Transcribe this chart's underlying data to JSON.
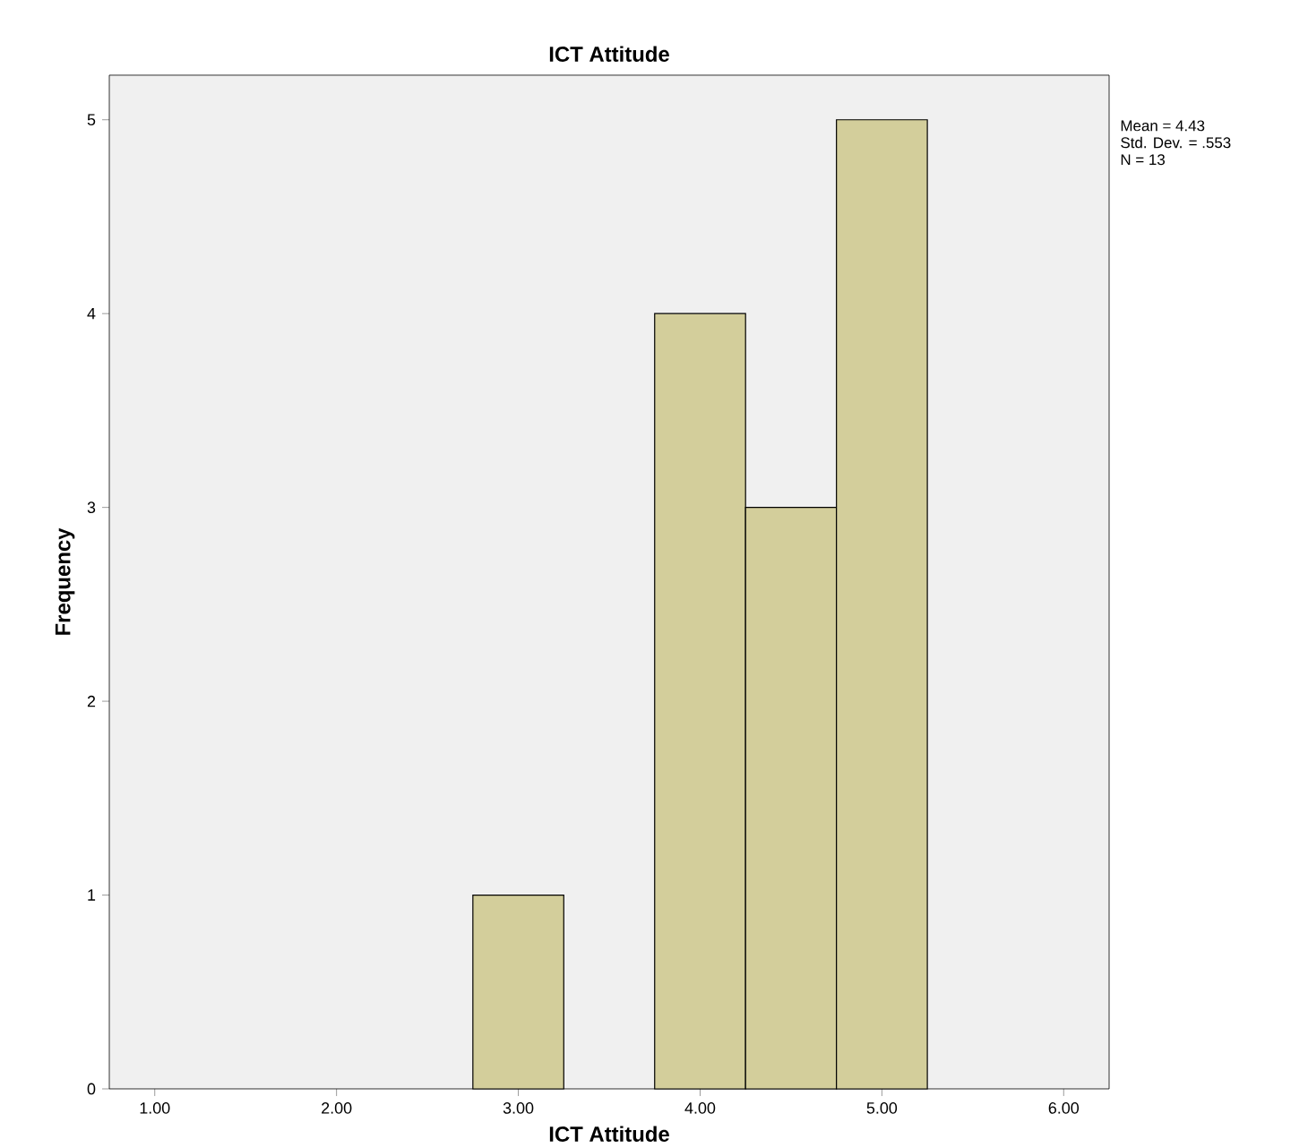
{
  "chart_data": {
    "type": "histogram",
    "title": "ICT Attitude",
    "xlabel": "ICT Attitude",
    "ylabel": "Frequency",
    "bins": [
      2.75,
      3.25,
      3.75,
      4.25,
      4.75,
      5.25
    ],
    "values": [
      1,
      0,
      4,
      3,
      5
    ],
    "color": "#d3ce9b",
    "xlim": [
      0.75,
      6.25
    ],
    "ylim": [
      0,
      5.23
    ],
    "xticks": [
      {
        "value": 1,
        "label": "1.00"
      },
      {
        "value": 2,
        "label": "2.00"
      },
      {
        "value": 3,
        "label": "3.00"
      },
      {
        "value": 4,
        "label": "4.00"
      },
      {
        "value": 5,
        "label": "5.00"
      },
      {
        "value": 6,
        "label": "6.00"
      }
    ],
    "yticks": [
      0,
      1,
      2,
      3,
      4,
      5
    ],
    "annotations": [
      "Mean = 4.43",
      "Std. Dev. = .553",
      "N = 13"
    ]
  }
}
